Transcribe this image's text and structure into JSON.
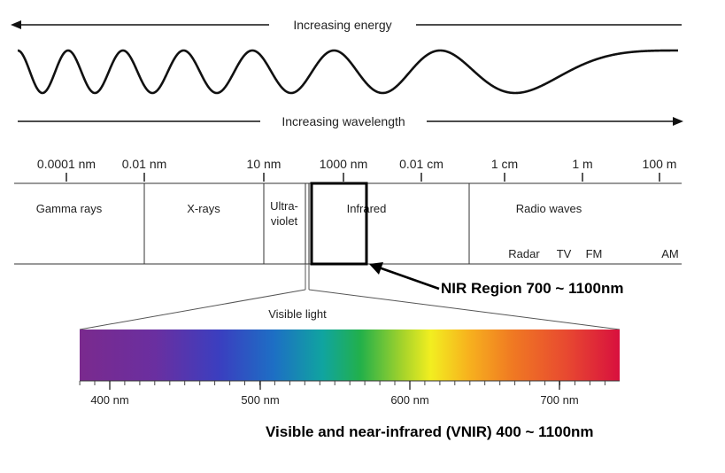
{
  "header": {
    "energy_label": "Increasing energy",
    "wavelength_label": "Increasing wavelength"
  },
  "scale": {
    "ticks": [
      "0.0001 nm",
      "0.01 nm",
      "10 nm",
      "1000 nm",
      "0.01 cm",
      "1 cm",
      "1 m",
      "100 m"
    ]
  },
  "bands": {
    "gamma": "Gamma rays",
    "xray": "X-rays",
    "uv_line1": "Ultra-",
    "uv_line2": "violet",
    "infrared": "Infrared",
    "radio": "Radio waves",
    "radio_sub": [
      "Radar",
      "TV",
      "FM",
      "AM"
    ]
  },
  "callouts": {
    "nir": "NIR Region  700 ~ 1100nm",
    "visible": "Visible light",
    "vnir": "Visible and near-infrared (VNIR)  400 ~ 1100nm"
  },
  "spectrum": {
    "ticks": [
      "400 nm",
      "500 nm",
      "600 nm",
      "700 nm"
    ]
  }
}
